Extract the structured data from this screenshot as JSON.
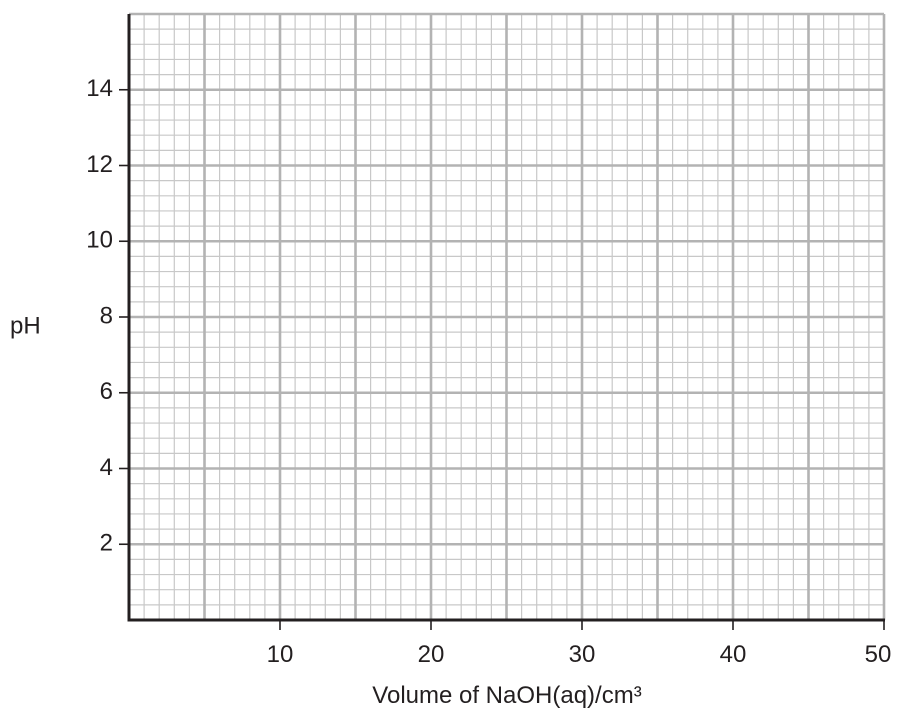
{
  "chart_data": {
    "type": "line",
    "title": "",
    "xlabel": "Volume of NaOH(aq)/cm³",
    "ylabel": "pH",
    "xlim": [
      0,
      50
    ],
    "ylim": [
      0,
      16
    ],
    "x_ticks": [
      10,
      20,
      30,
      40,
      50
    ],
    "x_tick_labels": [
      "10",
      "20",
      "30",
      "40",
      "50"
    ],
    "y_ticks": [
      2,
      4,
      6,
      8,
      10,
      12,
      14
    ],
    "y_tick_labels": [
      "2",
      "4",
      "6",
      "8",
      "10",
      "12",
      "14"
    ],
    "grid": true,
    "grid_minor_x": 1,
    "grid_minor_y": 0.4,
    "grid_major_x": 5,
    "grid_major_y": 2,
    "series": [],
    "colors": {
      "axis": "#231f20",
      "grid_major": "#b3b3b3",
      "grid_minor": "#c8c8c8",
      "text": "#231f20"
    }
  }
}
